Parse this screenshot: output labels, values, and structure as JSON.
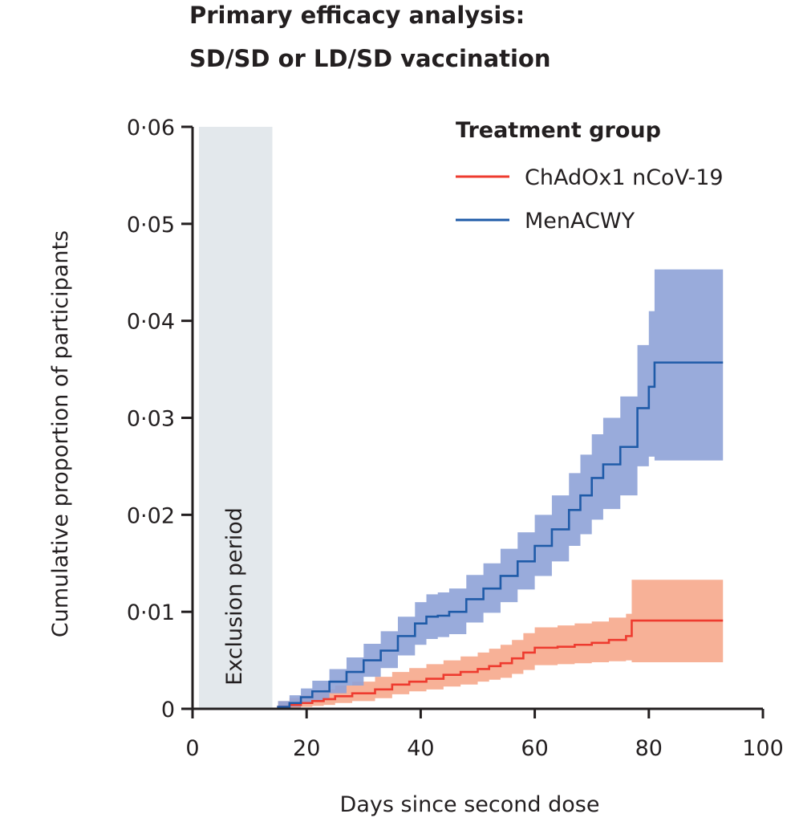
{
  "title": {
    "line1": "Primary efficacy analysis:",
    "line2": "SD/SD or LD/SD vaccination"
  },
  "chart_data": {
    "type": "line",
    "xlabel": "Days since second dose",
    "ylabel": "Cumulative proportion of participants",
    "xlim": [
      0,
      100
    ],
    "ylim": [
      0,
      0.06
    ],
    "x_ticks": [
      0,
      20,
      40,
      60,
      80,
      100
    ],
    "x_tick_labels": [
      "0",
      "20",
      "40",
      "60",
      "80",
      "100"
    ],
    "y_ticks": [
      0,
      0.01,
      0.02,
      0.03,
      0.04,
      0.05,
      0.06
    ],
    "y_tick_labels": [
      "0",
      "0·01",
      "0·02",
      "0·03",
      "0·04",
      "0·05",
      "0·06"
    ],
    "legend_title": "Treatment group",
    "legend_position": "top-right",
    "shaded_region": {
      "label": "Exclusion period",
      "x": [
        0,
        14
      ],
      "color": "#e3e8ec"
    },
    "series": [
      {
        "name": "ChAdOx1 nCoV-19",
        "color": "#ee3b2f",
        "band_color": "#f6a98c",
        "x": [
          0,
          15,
          17,
          19,
          21,
          23,
          25,
          28,
          32,
          35,
          38,
          41,
          44,
          47,
          50,
          52,
          54,
          56,
          58,
          60,
          64,
          67,
          70,
          73,
          76,
          77,
          93
        ],
        "y": [
          0,
          0.0002,
          0.0004,
          0.0006,
          0.0008,
          0.001,
          0.0013,
          0.0016,
          0.002,
          0.0025,
          0.0028,
          0.0031,
          0.0035,
          0.0038,
          0.0041,
          0.0044,
          0.0047,
          0.0052,
          0.0058,
          0.0063,
          0.0064,
          0.0066,
          0.0068,
          0.0071,
          0.0075,
          0.0091,
          0.0091
        ],
        "lower": [
          0,
          0,
          0.0001,
          0.0002,
          0.0003,
          0.0004,
          0.0006,
          0.0008,
          0.0011,
          0.0015,
          0.0018,
          0.002,
          0.0023,
          0.0025,
          0.0028,
          0.003,
          0.0032,
          0.0036,
          0.004,
          0.0045,
          0.0046,
          0.0047,
          0.0048,
          0.0049,
          0.005,
          0.0048,
          0.0048
        ],
        "upper": [
          0,
          0.0008,
          0.0011,
          0.0014,
          0.0017,
          0.002,
          0.0024,
          0.0028,
          0.0033,
          0.0038,
          0.0042,
          0.0046,
          0.005,
          0.0054,
          0.0058,
          0.0062,
          0.0066,
          0.0071,
          0.0078,
          0.0084,
          0.0086,
          0.0088,
          0.009,
          0.0094,
          0.0098,
          0.0133,
          0.0133
        ]
      },
      {
        "name": "MenACWY",
        "color": "#1f5ba8",
        "band_color": "#8ea2d7",
        "x": [
          0,
          15,
          17,
          19,
          21,
          24,
          27,
          30,
          33,
          36,
          39,
          41,
          43,
          45,
          48,
          51,
          54,
          57,
          60,
          63,
          66,
          68,
          70,
          72,
          75,
          78,
          80,
          81,
          93
        ],
        "y": [
          0,
          0.0002,
          0.0006,
          0.0012,
          0.0018,
          0.0028,
          0.0038,
          0.005,
          0.006,
          0.0075,
          0.0088,
          0.0095,
          0.0096,
          0.01,
          0.0113,
          0.0124,
          0.0137,
          0.0152,
          0.0168,
          0.0185,
          0.0205,
          0.022,
          0.0238,
          0.0252,
          0.027,
          0.031,
          0.0332,
          0.0357,
          0.0357
        ],
        "lower": [
          0,
          0,
          0.0002,
          0.0005,
          0.0009,
          0.0016,
          0.0024,
          0.0033,
          0.0042,
          0.0055,
          0.0066,
          0.0072,
          0.0074,
          0.0077,
          0.0089,
          0.0099,
          0.011,
          0.0123,
          0.0137,
          0.0152,
          0.0168,
          0.018,
          0.0195,
          0.0206,
          0.022,
          0.025,
          0.026,
          0.0256,
          0.0256
        ],
        "upper": [
          0,
          0.0008,
          0.0014,
          0.0021,
          0.0029,
          0.0041,
          0.0053,
          0.0067,
          0.008,
          0.0095,
          0.011,
          0.0118,
          0.012,
          0.0124,
          0.0138,
          0.015,
          0.0165,
          0.0182,
          0.02,
          0.022,
          0.0243,
          0.0262,
          0.0283,
          0.03,
          0.0322,
          0.0375,
          0.041,
          0.0453,
          0.0453
        ]
      }
    ]
  }
}
